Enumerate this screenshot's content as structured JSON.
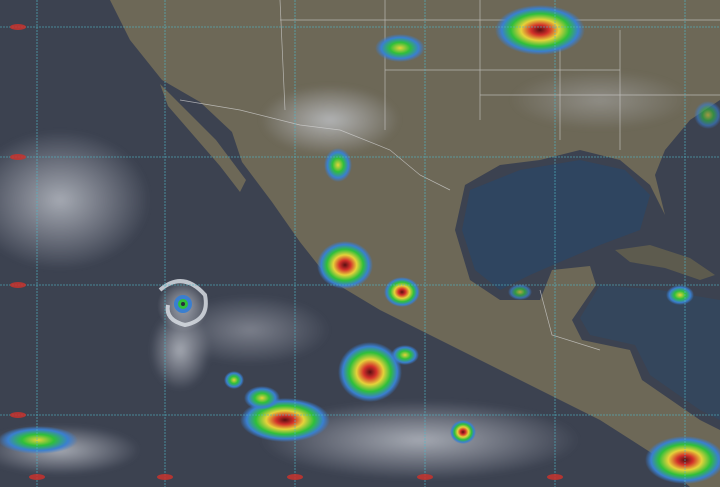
{
  "image": {
    "kind": "satellite-infrared-composite",
    "colors": {
      "ocean": "#3c4250",
      "land": "#6d6857",
      "gulf": "#2f4560",
      "grid": "#4fb8c8",
      "grid_labels": "#c8322d",
      "storm_green": "#2fbf3a",
      "storm_yellow": "#e6d23a",
      "storm_red": "#d2302a",
      "storm_dark": "#5a0f12",
      "cold_cloud_blue": "#3a7fd0"
    },
    "features": [
      "tropical-cyclone-spiral",
      "convective-storm-clusters",
      "state-borders",
      "lat-lon-grid"
    ]
  }
}
